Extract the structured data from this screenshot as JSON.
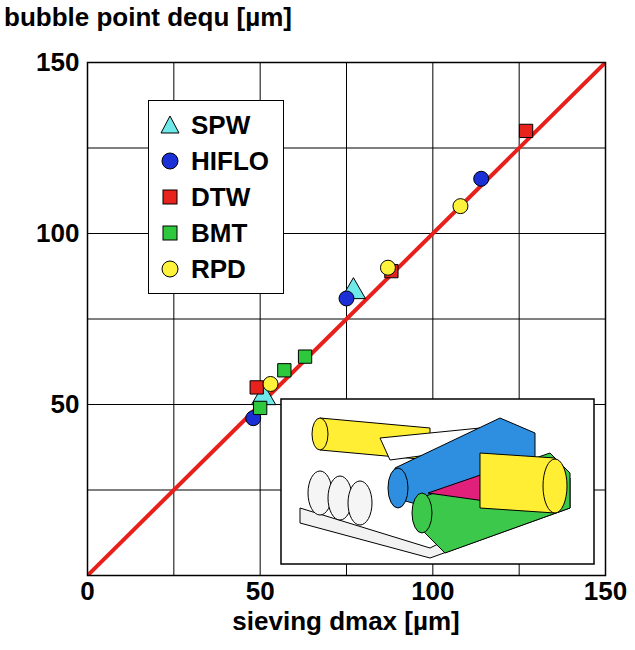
{
  "chart_data": {
    "type": "scatter",
    "x_label": "sieving dmax [µm]",
    "y_label": "bubble point dequ [µm]",
    "xlim": [
      0,
      150
    ],
    "ylim": [
      0,
      150
    ],
    "xticks": [
      0,
      50,
      100,
      150
    ],
    "yticks": [
      50,
      100,
      150
    ],
    "grid": true,
    "legend": "top-left",
    "diagonal": {
      "x": [
        0,
        150
      ],
      "y": [
        0,
        150
      ],
      "color": "#e8201c"
    },
    "series": [
      {
        "name": "SPW",
        "color": "#6ee8e8",
        "marker": "triangle",
        "x": [
          51,
          77
        ],
        "values": [
          52,
          83
        ]
      },
      {
        "name": "HIFLO",
        "color": "#1a2fd6",
        "marker": "circle",
        "x": [
          48,
          75,
          114
        ],
        "values": [
          46,
          81,
          116
        ]
      },
      {
        "name": "DTW",
        "color": "#e8231e",
        "marker": "square",
        "x": [
          49,
          88,
          127
        ],
        "values": [
          55,
          89,
          130
        ]
      },
      {
        "name": "BMT",
        "color": "#2ec83c",
        "marker": "square",
        "x": [
          50,
          57,
          63
        ],
        "values": [
          49,
          60,
          64
        ]
      },
      {
        "name": "RPD",
        "color": "#fff23a",
        "marker": "circle",
        "x": [
          53,
          87,
          108
        ],
        "values": [
          56,
          90,
          108
        ]
      }
    ]
  }
}
